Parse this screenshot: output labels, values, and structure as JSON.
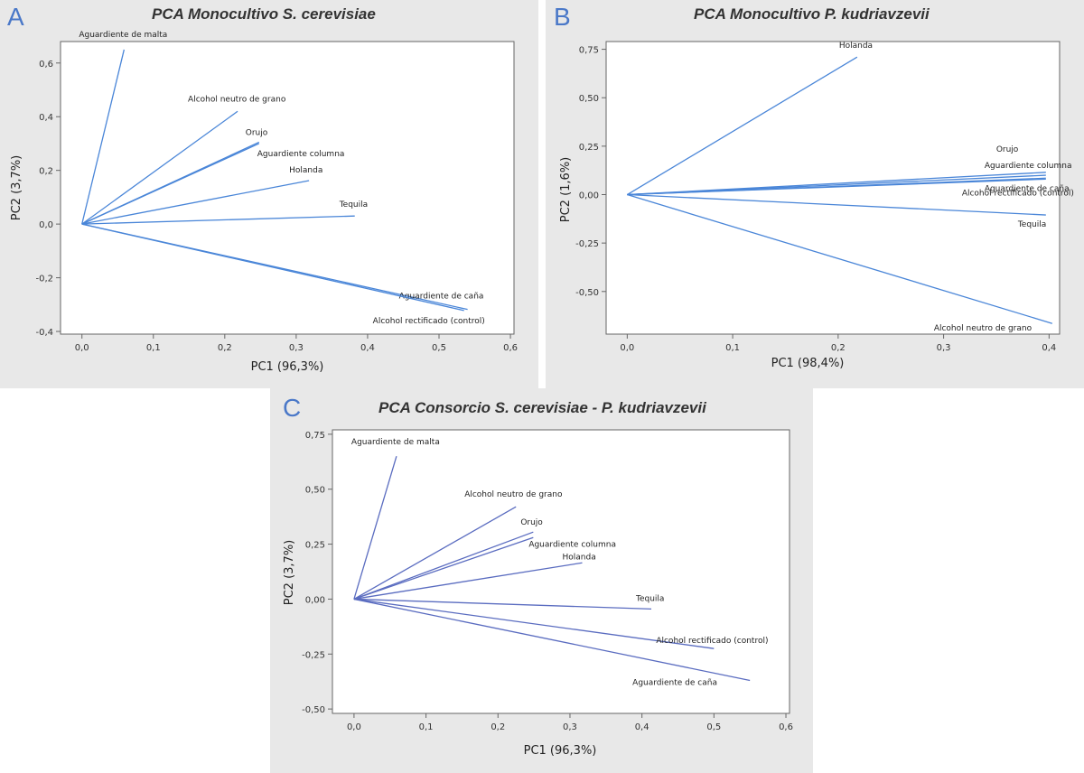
{
  "chart_data": [
    {
      "id": "A",
      "type": "line",
      "panel_label": "A",
      "title": "PCA Monocultivo S. cerevisiae",
      "xlabel": "PC1 (96,3%)",
      "ylabel": "PC2 (3,7%)",
      "xlim": [
        -0.03,
        0.605
      ],
      "ylim": [
        -0.41,
        0.68
      ],
      "xticks": [
        0.0,
        0.1,
        0.2,
        0.3,
        0.4,
        0.5,
        0.6
      ],
      "xtick_labels": [
        "0,0",
        "0,1",
        "0,2",
        "0,3",
        "0,4",
        "0,5",
        "0,6"
      ],
      "yticks": [
        -0.4,
        -0.2,
        0.0,
        0.2,
        0.4,
        0.6
      ],
      "ytick_labels": [
        "-0,4",
        "-0,2",
        "0,0",
        "0,2",
        "0,4",
        "0,6"
      ],
      "series_color": "#4a86d8",
      "series": [
        {
          "name": "Aguardiente de malta",
          "x": 0.059,
          "y": 0.65
        },
        {
          "name": "Alcohol neutro de grano",
          "x": 0.218,
          "y": 0.42
        },
        {
          "name": "Orujo",
          "x": 0.248,
          "y": 0.305
        },
        {
          "name": "Aguardiente columna",
          "x": 0.248,
          "y": 0.3
        },
        {
          "name": "Holanda",
          "x": 0.318,
          "y": 0.162
        },
        {
          "name": "Tequila",
          "x": 0.382,
          "y": 0.03
        },
        {
          "name": "Aguardiente de caña",
          "x": 0.54,
          "y": -0.318
        },
        {
          "name": "Alcohol rectificado (control)",
          "x": 0.535,
          "y": -0.322
        }
      ]
    },
    {
      "id": "B",
      "type": "line",
      "panel_label": "B",
      "title": "PCA Monocultivo P. kudriavzevii",
      "xlabel": "PC1 (98,4%)",
      "ylabel": "PC2 (1,6%)",
      "xlim": [
        -0.02,
        0.41
      ],
      "ylim": [
        -0.72,
        0.79
      ],
      "xticks": [
        0.0,
        0.1,
        0.2,
        0.3,
        0.4
      ],
      "xtick_labels": [
        "0,0",
        "0,1",
        "0,2",
        "0,3",
        "0,4"
      ],
      "yticks": [
        -0.5,
        -0.25,
        0.0,
        0.25,
        0.5,
        0.75
      ],
      "ytick_labels": [
        "-0,50",
        "-0,25",
        "0,00",
        "0,25",
        "0,50",
        "0,75"
      ],
      "series_color": "#4a86d8",
      "series": [
        {
          "name": "Holanda",
          "x": 0.218,
          "y": 0.71
        },
        {
          "name": "Orujo",
          "x": 0.397,
          "y": 0.115
        },
        {
          "name": "Aguardiente columna",
          "x": 0.397,
          "y": 0.1
        },
        {
          "name": "Aguardiente de caña",
          "x": 0.397,
          "y": 0.085
        },
        {
          "name": "Alcohol rectificado (control)",
          "x": 0.397,
          "y": 0.08
        },
        {
          "name": "Tequila",
          "x": 0.397,
          "y": -0.105
        },
        {
          "name": "Alcohol neutro de grano",
          "x": 0.403,
          "y": -0.665
        }
      ]
    },
    {
      "id": "C",
      "type": "line",
      "panel_label": "C",
      "title": "PCA Consorcio S. cerevisiae - P. kudriavzevii",
      "xlabel": "PC1 (96,3%)",
      "ylabel": "PC2 (3,7%)",
      "xlim": [
        -0.03,
        0.605
      ],
      "ylim": [
        -0.52,
        0.77
      ],
      "xticks": [
        0.0,
        0.1,
        0.2,
        0.3,
        0.4,
        0.5,
        0.6
      ],
      "xtick_labels": [
        "0,0",
        "0,1",
        "0,2",
        "0,3",
        "0,4",
        "0,5",
        "0,6"
      ],
      "yticks": [
        -0.5,
        -0.25,
        0.0,
        0.25,
        0.5,
        0.75
      ],
      "ytick_labels": [
        "-0,50",
        "-0,25",
        "0,00",
        "0,25",
        "0,50",
        "0,75"
      ],
      "series_color": "#5a6cc0",
      "series": [
        {
          "name": "Aguardiente de malta",
          "x": 0.059,
          "y": 0.65
        },
        {
          "name": "Alcohol neutro de grano",
          "x": 0.225,
          "y": 0.42
        },
        {
          "name": "Orujo",
          "x": 0.249,
          "y": 0.305
        },
        {
          "name": "Aguardiente columna",
          "x": 0.249,
          "y": 0.28
        },
        {
          "name": "Holanda",
          "x": 0.317,
          "y": 0.165
        },
        {
          "name": "Tequila",
          "x": 0.413,
          "y": -0.045
        },
        {
          "name": "Alcohol rectificado (control)",
          "x": 0.5,
          "y": -0.225
        },
        {
          "name": "Aguardiente de caña",
          "x": 0.55,
          "y": -0.37
        }
      ]
    }
  ]
}
